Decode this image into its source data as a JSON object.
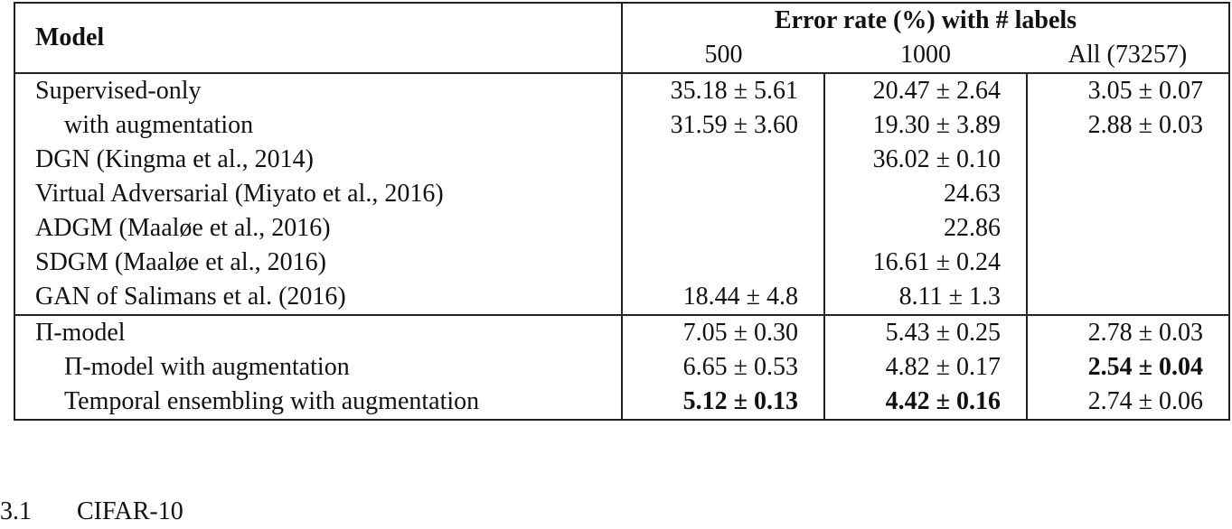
{
  "table": {
    "header": {
      "model": "Model",
      "group": "Error rate (%) with # labels",
      "columns": [
        "500",
        "1000",
        "All (73257)"
      ]
    },
    "sections": [
      {
        "rows": [
          {
            "model": "Supervised-only",
            "cells": [
              "35.18 ± 5.61",
              "20.47 ± 2.64",
              "3.05 ± 0.07"
            ]
          },
          {
            "model": "with augmentation",
            "indent": 1,
            "cells": [
              "31.59 ± 3.60",
              "19.30 ± 3.89",
              "2.88 ± 0.03"
            ]
          },
          {
            "model": "DGN (Kingma et al., 2014)",
            "cells": [
              null,
              "36.02 ± 0.10",
              null
            ]
          },
          {
            "model": "Virtual Adversarial (Miyato et al., 2016)",
            "cells": [
              null,
              "24.63",
              null
            ]
          },
          {
            "model": "ADGM (Maaløe et al., 2016)",
            "cells": [
              null,
              "22.86",
              null
            ]
          },
          {
            "model": "SDGM (Maaløe et al., 2016)",
            "cells": [
              null,
              "16.61 ± 0.24",
              null
            ]
          },
          {
            "model": "GAN of Salimans et al. (2016)",
            "cells": [
              "18.44 ± 4.8",
              "8.11 ± 1.3",
              null
            ]
          }
        ]
      },
      {
        "rows": [
          {
            "model": "Π-model",
            "cells": [
              "7.05 ± 0.30",
              "5.43 ± 0.25",
              "2.78 ± 0.03"
            ]
          },
          {
            "model": "Π-model with augmentation",
            "indent": 1,
            "cells": [
              "6.65 ± 0.53",
              "4.82 ± 0.17",
              "2.54 ± 0.04"
            ],
            "bold_cells": [
              2
            ]
          },
          {
            "model": "Temporal ensembling with augmentation",
            "indent": 1,
            "cells": [
              "5.12 ± 0.13",
              "4.42 ± 0.16",
              "2.74 ± 0.06"
            ],
            "bold_cells": [
              0,
              1
            ]
          }
        ]
      }
    ]
  },
  "section": {
    "number": "3.1",
    "title": "CIFAR-10"
  }
}
